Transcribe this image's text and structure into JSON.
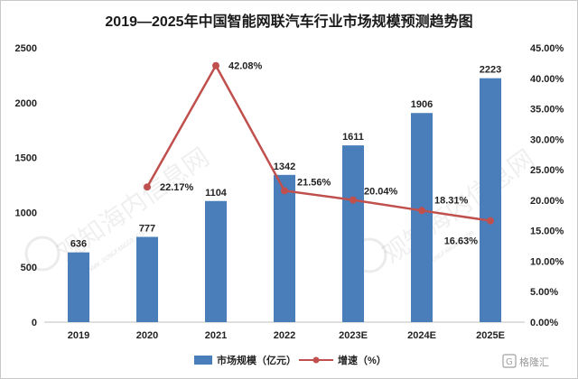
{
  "chart_data": {
    "type": "bar+line",
    "title": "2019—2025年中国智能网联汽车行业市场规模预测趋势图",
    "categories": [
      "2019",
      "2020",
      "2021",
      "2022",
      "2023E",
      "2024E",
      "2025E"
    ],
    "series": [
      {
        "name": "市场规模（亿元）",
        "type": "bar",
        "axis": "left",
        "values": [
          636,
          777,
          1104,
          1342,
          1611,
          1906,
          2223
        ],
        "color": "#4a7ebb"
      },
      {
        "name": "增速（%）",
        "type": "line",
        "axis": "right",
        "values": [
          null,
          22.17,
          42.08,
          21.56,
          20.04,
          18.31,
          16.63
        ],
        "color": "#c0504d"
      }
    ],
    "bar_labels": [
      "636",
      "777",
      "1104",
      "1342",
      "1611",
      "1906",
      "2223"
    ],
    "line_labels": [
      "",
      "22.17%",
      "42.08%",
      "21.56%",
      "20.04%",
      "18.31%",
      "16.63%"
    ],
    "ylim_left": [
      0,
      2500
    ],
    "yticks_left": [
      "0",
      "500",
      "1000",
      "1500",
      "2000",
      "2500"
    ],
    "ylim_right": [
      0,
      45
    ],
    "yticks_right": [
      "0.00%",
      "5.00%",
      "10.00%",
      "15.00%",
      "20.00%",
      "25.00%",
      "30.00%",
      "35.00%",
      "40.00%",
      "45.00%"
    ],
    "grid": false,
    "legend_position": "bottom"
  },
  "watermark": {
    "text": "观知海内信息网",
    "url_text": "WWW.DONGFANGGB.COM"
  },
  "brand": {
    "text": "格隆汇"
  }
}
